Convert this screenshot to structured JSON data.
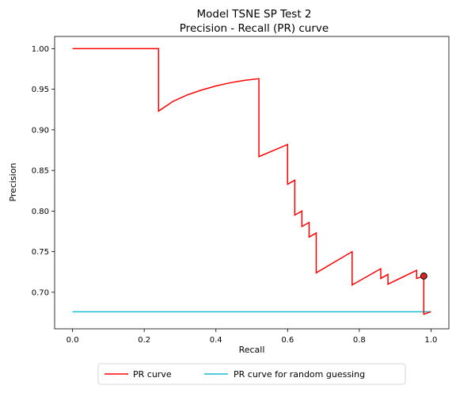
{
  "chart_data": {
    "type": "line",
    "title": "Model TSNE SP Test 2",
    "subtitle": "Precision - Recall (PR) curve",
    "xlabel": "Recall",
    "ylabel": "Precision",
    "xlim": [
      -0.05,
      1.05
    ],
    "ylim": [
      0.655,
      1.015
    ],
    "xticks": [
      "0.0",
      "0.2",
      "0.4",
      "0.6",
      "0.8",
      "1.0"
    ],
    "yticks": [
      "0.70",
      "0.75",
      "0.80",
      "0.85",
      "0.90",
      "0.95",
      "1.00"
    ],
    "grid": false,
    "legend": {
      "placement": "below-center",
      "columns": 2
    },
    "colors": {
      "pr": "#ff0000",
      "random": "#17becf",
      "marker_face": "#d62728"
    },
    "series": [
      {
        "name": "PR curve",
        "x": [
          0.0,
          0.24,
          0.24,
          0.28,
          0.32,
          0.36,
          0.4,
          0.44,
          0.48,
          0.52,
          0.52,
          0.6,
          0.6,
          0.62,
          0.62,
          0.64,
          0.64,
          0.66,
          0.66,
          0.68,
          0.68,
          0.78,
          0.78,
          0.86,
          0.86,
          0.88,
          0.88,
          0.96,
          0.96,
          0.98,
          0.98,
          0.98,
          1.0
        ],
        "y": [
          1.0,
          1.0,
          0.923,
          0.935,
          0.943,
          0.949,
          0.954,
          0.958,
          0.961,
          0.963,
          0.867,
          0.882,
          0.833,
          0.838,
          0.795,
          0.8,
          0.781,
          0.786,
          0.768,
          0.773,
          0.724,
          0.75,
          0.709,
          0.729,
          0.717,
          0.722,
          0.71,
          0.727,
          0.717,
          0.72,
          0.72,
          0.673,
          0.676
        ]
      },
      {
        "name": "PR curve for random guessing",
        "x": [
          0.0,
          1.0
        ],
        "y": [
          0.676,
          0.676
        ]
      }
    ],
    "marker": {
      "x": 0.98,
      "y": 0.72
    }
  }
}
